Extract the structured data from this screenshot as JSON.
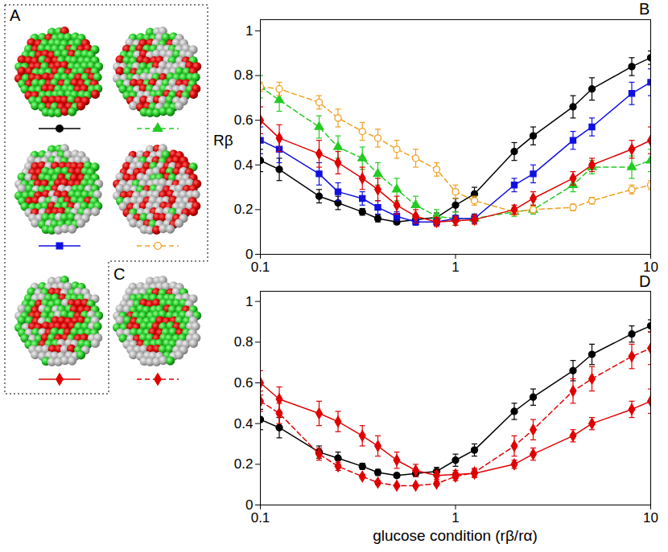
{
  "structures": [
    {
      "panel": "A",
      "chart": 0,
      "series": [
        0,
        1,
        2,
        3,
        4
      ]
    },
    {
      "panel": "C",
      "chart": 1,
      "series": [
        2
      ]
    }
  ],
  "chart_data": [
    {
      "type": "line",
      "panel": "B",
      "ylabel": "Rβ",
      "log": "x",
      "xlim": [
        0.1,
        10
      ],
      "ylim": [
        0,
        1.05
      ],
      "xticks": [
        0.1,
        1,
        10
      ],
      "yticks": [
        0,
        0.2,
        0.4,
        0.6,
        0.8,
        1
      ],
      "x": [
        0.1,
        0.125,
        0.2,
        0.25,
        0.333,
        0.4,
        0.5,
        0.625,
        0.8,
        1,
        1.25,
        2,
        2.5,
        4,
        5,
        8,
        10
      ],
      "series": [
        {
          "color": "#000000",
          "marker": "circle",
          "line_style": "solid",
          "values": [
            0.42,
            0.38,
            0.26,
            0.23,
            0.19,
            0.16,
            0.145,
            0.155,
            0.165,
            0.22,
            0.27,
            0.46,
            0.53,
            0.66,
            0.74,
            0.84,
            0.88
          ],
          "errors": [
            0.05,
            0.05,
            0.03,
            0.03,
            0.015,
            0.015,
            0.01,
            0.015,
            0.02,
            0.03,
            0.03,
            0.04,
            0.04,
            0.05,
            0.05,
            0.04,
            0.03
          ]
        },
        {
          "color": "#22cc22",
          "marker": "triangle",
          "line_style": "dashed",
          "values": [
            0.75,
            0.69,
            0.57,
            0.48,
            0.43,
            0.36,
            0.29,
            0.22,
            0.17,
            0.16,
            0.16,
            0.19,
            0.2,
            0.31,
            0.39,
            0.39,
            0.42
          ],
          "errors": [
            0.05,
            0.05,
            0.05,
            0.05,
            0.05,
            0.05,
            0.05,
            0.04,
            0.03,
            0.03,
            0.02,
            0.02,
            0.02,
            0.03,
            0.03,
            0.05,
            0.05
          ]
        },
        {
          "color": "#1010e0",
          "marker": "square",
          "line_style": "solid",
          "values": [
            0.51,
            0.47,
            0.36,
            0.28,
            0.25,
            0.21,
            0.17,
            0.145,
            0.145,
            0.16,
            0.16,
            0.31,
            0.36,
            0.51,
            0.57,
            0.72,
            0.77
          ],
          "errors": [
            0.06,
            0.06,
            0.05,
            0.04,
            0.03,
            0.03,
            0.02,
            0.015,
            0.015,
            0.015,
            0.02,
            0.03,
            0.04,
            0.04,
            0.04,
            0.05,
            0.06
          ]
        },
        {
          "color": "#f0a020",
          "marker": "open circle",
          "line_style": "dashed",
          "values": [
            0.75,
            0.74,
            0.68,
            0.61,
            0.55,
            0.52,
            0.47,
            0.43,
            0.38,
            0.28,
            0.24,
            0.19,
            0.2,
            0.21,
            0.24,
            0.29,
            0.31
          ],
          "errors": [
            0.02,
            0.03,
            0.03,
            0.04,
            0.04,
            0.04,
            0.04,
            0.04,
            0.03,
            0.03,
            0.02,
            0.015,
            0.015,
            0.015,
            0.015,
            0.02,
            0.02
          ]
        },
        {
          "color": "#e00000",
          "marker": "diamond",
          "line_style": "solid",
          "values": [
            0.6,
            0.52,
            0.45,
            0.41,
            0.34,
            0.29,
            0.22,
            0.17,
            0.145,
            0.15,
            0.155,
            0.2,
            0.25,
            0.34,
            0.4,
            0.47,
            0.51
          ],
          "errors": [
            0.06,
            0.06,
            0.06,
            0.05,
            0.05,
            0.05,
            0.04,
            0.03,
            0.02,
            0.02,
            0.02,
            0.02,
            0.03,
            0.03,
            0.03,
            0.04,
            0.06
          ]
        }
      ]
    },
    {
      "type": "line",
      "panel": "D",
      "xlabel": "glucose condition (rβ/rα)",
      "log": "x",
      "xlim": [
        0.1,
        10
      ],
      "ylim": [
        0,
        1.05
      ],
      "xticks": [
        0.1,
        1,
        10
      ],
      "yticks": [
        0,
        0.2,
        0.4,
        0.6,
        0.8,
        1
      ],
      "x": [
        0.1,
        0.125,
        0.2,
        0.25,
        0.333,
        0.4,
        0.5,
        0.625,
        0.8,
        1,
        1.25,
        2,
        2.5,
        4,
        5,
        8,
        10
      ],
      "series": [
        {
          "color": "#000000",
          "marker": "circle",
          "line_style": "solid",
          "values": [
            0.42,
            0.38,
            0.26,
            0.23,
            0.19,
            0.16,
            0.145,
            0.155,
            0.165,
            0.22,
            0.27,
            0.46,
            0.53,
            0.66,
            0.74,
            0.84,
            0.88
          ],
          "errors": [
            0.05,
            0.05,
            0.03,
            0.03,
            0.015,
            0.015,
            0.01,
            0.015,
            0.02,
            0.03,
            0.03,
            0.04,
            0.04,
            0.05,
            0.05,
            0.04,
            0.03
          ]
        },
        {
          "color": "#e00000",
          "marker": "diamond",
          "line_style": "solid",
          "values": [
            0.6,
            0.52,
            0.45,
            0.41,
            0.34,
            0.29,
            0.22,
            0.17,
            0.145,
            0.15,
            0.155,
            0.2,
            0.25,
            0.34,
            0.4,
            0.47,
            0.51
          ],
          "errors": [
            0.06,
            0.06,
            0.06,
            0.05,
            0.05,
            0.05,
            0.04,
            0.03,
            0.02,
            0.02,
            0.02,
            0.02,
            0.03,
            0.03,
            0.03,
            0.04,
            0.06
          ]
        },
        {
          "color": "#e00000",
          "marker": "diamond",
          "line_style": "dashed",
          "values": [
            0.51,
            0.45,
            0.25,
            0.19,
            0.14,
            0.11,
            0.095,
            0.095,
            0.105,
            0.14,
            0.16,
            0.29,
            0.37,
            0.56,
            0.62,
            0.73,
            0.77
          ],
          "errors": [
            0.05,
            0.05,
            0.03,
            0.02,
            0.01,
            0.01,
            0.005,
            0.005,
            0.01,
            0.02,
            0.02,
            0.05,
            0.05,
            0.06,
            0.06,
            0.06,
            0.08
          ]
        }
      ]
    }
  ]
}
